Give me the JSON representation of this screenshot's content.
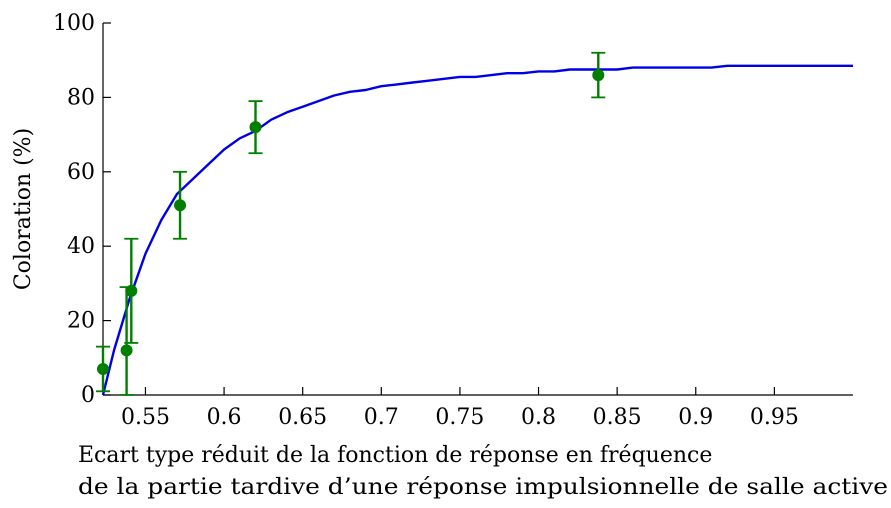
{
  "chart_data": {
    "type": "scatter",
    "title": "",
    "xlabel_lines": [
      "Ecart type réduit de la fonction de réponse en fréquence",
      "de la partie tardive d’une réponse impulsionnelle de salle active"
    ],
    "ylabel": "Coloration (%)",
    "xlim": [
      0.523,
      1.0
    ],
    "ylim": [
      0,
      100
    ],
    "x_ticks": [
      0.55,
      0.6,
      0.65,
      0.7,
      0.75,
      0.8,
      0.85,
      0.9,
      0.95
    ],
    "x_tick_labels": [
      "0.55",
      "0.6",
      "0.65",
      "0.7",
      "0.75",
      "0.8",
      "0.85",
      "0.9",
      "0.95"
    ],
    "y_ticks": [
      0,
      20,
      40,
      60,
      80,
      100
    ],
    "y_tick_labels": [
      "0",
      "20",
      "40",
      "60",
      "80",
      "100"
    ],
    "grid": false,
    "series": [
      {
        "kind": "points_with_errorbars",
        "color": "#007f00",
        "points": [
          {
            "x": 0.523,
            "y": 7,
            "low": 1,
            "high": 13
          },
          {
            "x": 0.538,
            "y": 12,
            "low": 0,
            "high": 29
          },
          {
            "x": 0.541,
            "y": 28,
            "low": 14,
            "high": 42
          },
          {
            "x": 0.572,
            "y": 51,
            "low": 42,
            "high": 60
          },
          {
            "x": 0.62,
            "y": 72,
            "low": 65,
            "high": 79
          },
          {
            "x": 0.838,
            "y": 86,
            "low": 80,
            "high": 92
          }
        ]
      },
      {
        "kind": "fitted_curve",
        "color": "#0000e6",
        "x": [
          0.523,
          0.53,
          0.54,
          0.55,
          0.56,
          0.57,
          0.58,
          0.59,
          0.6,
          0.61,
          0.62,
          0.63,
          0.64,
          0.65,
          0.66,
          0.67,
          0.68,
          0.69,
          0.7,
          0.71,
          0.72,
          0.73,
          0.74,
          0.75,
          0.76,
          0.77,
          0.78,
          0.79,
          0.8,
          0.81,
          0.82,
          0.83,
          0.84,
          0.85,
          0.86,
          0.88,
          0.9,
          0.91,
          0.92,
          0.95,
          1.0
        ],
        "y": [
          0,
          12,
          26,
          38,
          47,
          54,
          58,
          62,
          66,
          69,
          71,
          74,
          76,
          77.5,
          79,
          80.5,
          81.5,
          82,
          83,
          83.5,
          84,
          84.5,
          85,
          85.5,
          85.5,
          86,
          86.5,
          86.5,
          87,
          87,
          87.5,
          87.5,
          87.5,
          87.5,
          88,
          88,
          88,
          88,
          88.5,
          88.5,
          88.5
        ]
      }
    ]
  }
}
